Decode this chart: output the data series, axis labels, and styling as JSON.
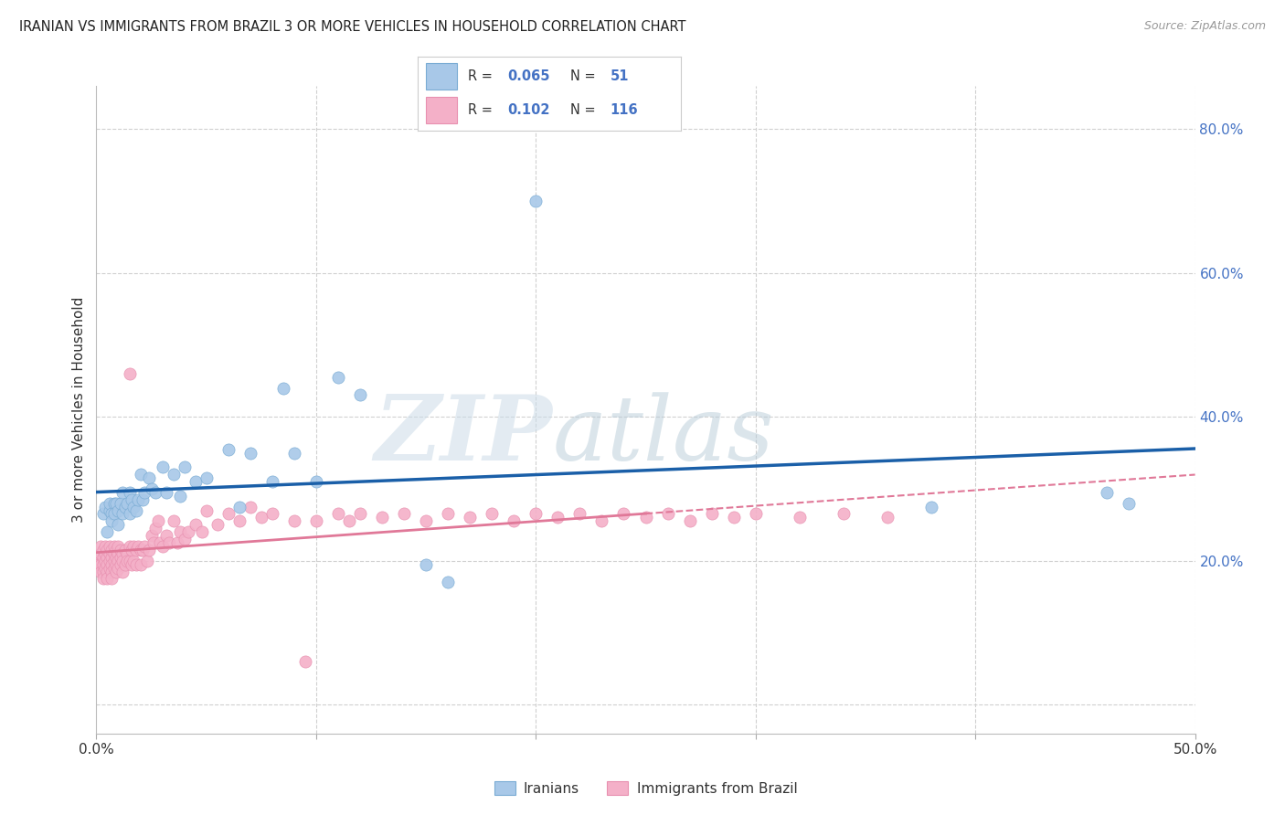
{
  "title": "IRANIAN VS IMMIGRANTS FROM BRAZIL 3 OR MORE VEHICLES IN HOUSEHOLD CORRELATION CHART",
  "source": "Source: ZipAtlas.com",
  "ylabel": "3 or more Vehicles in Household",
  "xmin": 0.0,
  "xmax": 0.5,
  "ymin": -0.04,
  "ymax": 0.86,
  "xtick_positions": [
    0.0,
    0.1,
    0.2,
    0.3,
    0.4,
    0.5
  ],
  "xtick_labels": [
    "0.0%",
    "",
    "",
    "",
    "",
    "50.0%"
  ],
  "ytick_positions": [
    0.0,
    0.2,
    0.4,
    0.6,
    0.8
  ],
  "ytick_labels": [
    "",
    "20.0%",
    "40.0%",
    "60.0%",
    "80.0%"
  ],
  "iran_color": "#a8c8e8",
  "iran_edge": "#7aacd4",
  "brazil_color": "#f4b0c8",
  "brazil_edge": "#e890b0",
  "iran_line_color": "#1a5fa8",
  "brazil_line_color": "#e07898",
  "grid_color": "#d0d0d0",
  "text_color": "#333333",
  "axis_label_color": "#4472c4",
  "legend_bottom_labels": [
    "Iranians",
    "Immigrants from Brazil"
  ],
  "iran_R": "0.065",
  "iran_N": "51",
  "brazil_R": "0.102",
  "brazil_N": "116",
  "iranians_x": [
    0.003,
    0.004,
    0.005,
    0.006,
    0.006,
    0.007,
    0.007,
    0.008,
    0.008,
    0.009,
    0.01,
    0.01,
    0.011,
    0.012,
    0.012,
    0.013,
    0.014,
    0.015,
    0.015,
    0.016,
    0.017,
    0.018,
    0.019,
    0.02,
    0.021,
    0.022,
    0.024,
    0.025,
    0.027,
    0.03,
    0.032,
    0.035,
    0.038,
    0.04,
    0.045,
    0.05,
    0.06,
    0.065,
    0.07,
    0.08,
    0.085,
    0.09,
    0.1,
    0.11,
    0.12,
    0.15,
    0.16,
    0.2,
    0.38,
    0.46,
    0.47
  ],
  "iranians_y": [
    0.265,
    0.275,
    0.24,
    0.27,
    0.28,
    0.265,
    0.255,
    0.28,
    0.265,
    0.28,
    0.27,
    0.25,
    0.28,
    0.265,
    0.295,
    0.275,
    0.28,
    0.295,
    0.265,
    0.285,
    0.275,
    0.27,
    0.285,
    0.32,
    0.285,
    0.295,
    0.315,
    0.3,
    0.295,
    0.33,
    0.295,
    0.32,
    0.29,
    0.33,
    0.31,
    0.315,
    0.355,
    0.275,
    0.35,
    0.31,
    0.44,
    0.35,
    0.31,
    0.455,
    0.43,
    0.195,
    0.17,
    0.7,
    0.275,
    0.295,
    0.28
  ],
  "brazil_x": [
    0.001,
    0.001,
    0.002,
    0.002,
    0.002,
    0.002,
    0.003,
    0.003,
    0.003,
    0.003,
    0.003,
    0.004,
    0.004,
    0.004,
    0.004,
    0.005,
    0.005,
    0.005,
    0.005,
    0.005,
    0.006,
    0.006,
    0.006,
    0.006,
    0.007,
    0.007,
    0.007,
    0.007,
    0.007,
    0.008,
    0.008,
    0.008,
    0.008,
    0.009,
    0.009,
    0.009,
    0.009,
    0.01,
    0.01,
    0.01,
    0.01,
    0.011,
    0.011,
    0.011,
    0.012,
    0.012,
    0.012,
    0.013,
    0.013,
    0.014,
    0.014,
    0.015,
    0.015,
    0.015,
    0.016,
    0.016,
    0.017,
    0.017,
    0.018,
    0.018,
    0.019,
    0.02,
    0.02,
    0.021,
    0.022,
    0.023,
    0.024,
    0.025,
    0.026,
    0.027,
    0.028,
    0.029,
    0.03,
    0.032,
    0.033,
    0.035,
    0.037,
    0.038,
    0.04,
    0.042,
    0.045,
    0.048,
    0.05,
    0.055,
    0.06,
    0.065,
    0.07,
    0.075,
    0.08,
    0.09,
    0.095,
    0.1,
    0.11,
    0.115,
    0.12,
    0.13,
    0.14,
    0.15,
    0.16,
    0.17,
    0.18,
    0.19,
    0.2,
    0.21,
    0.22,
    0.23,
    0.24,
    0.25,
    0.26,
    0.27,
    0.28,
    0.29,
    0.3,
    0.32,
    0.34,
    0.36
  ],
  "brazil_y": [
    0.2,
    0.195,
    0.21,
    0.195,
    0.185,
    0.22,
    0.205,
    0.195,
    0.215,
    0.185,
    0.175,
    0.21,
    0.2,
    0.19,
    0.22,
    0.205,
    0.195,
    0.215,
    0.185,
    0.175,
    0.21,
    0.2,
    0.19,
    0.22,
    0.205,
    0.195,
    0.215,
    0.185,
    0.175,
    0.21,
    0.2,
    0.19,
    0.22,
    0.205,
    0.195,
    0.215,
    0.185,
    0.21,
    0.2,
    0.19,
    0.22,
    0.205,
    0.195,
    0.215,
    0.185,
    0.21,
    0.2,
    0.215,
    0.195,
    0.21,
    0.2,
    0.46,
    0.22,
    0.2,
    0.215,
    0.195,
    0.22,
    0.2,
    0.215,
    0.195,
    0.22,
    0.215,
    0.195,
    0.215,
    0.22,
    0.2,
    0.215,
    0.235,
    0.225,
    0.245,
    0.255,
    0.225,
    0.22,
    0.235,
    0.225,
    0.255,
    0.225,
    0.24,
    0.23,
    0.24,
    0.25,
    0.24,
    0.27,
    0.25,
    0.265,
    0.255,
    0.275,
    0.26,
    0.265,
    0.255,
    0.06,
    0.255,
    0.265,
    0.255,
    0.265,
    0.26,
    0.265,
    0.255,
    0.265,
    0.26,
    0.265,
    0.255,
    0.265,
    0.26,
    0.265,
    0.255,
    0.265,
    0.26,
    0.265,
    0.255,
    0.265,
    0.26,
    0.265,
    0.26,
    0.265,
    0.26
  ]
}
